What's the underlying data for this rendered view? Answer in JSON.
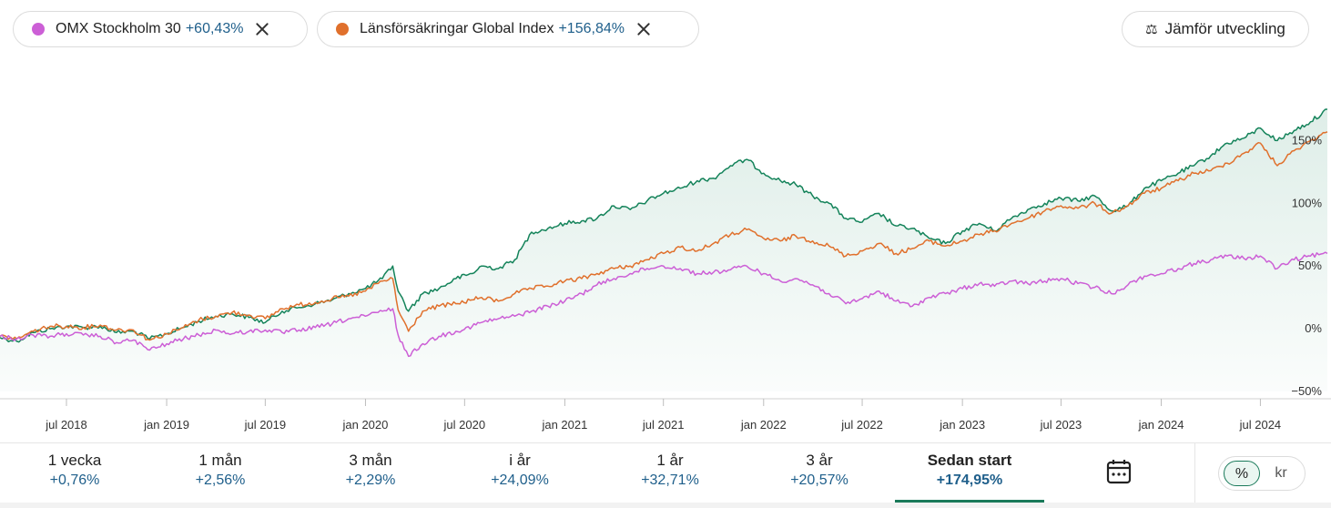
{
  "chips": [
    {
      "name": "OMX Stockholm 30",
      "change": "+60,43%",
      "color": "#cc5fd6"
    },
    {
      "name": "Länsförsäkringar Global Index",
      "change": "+156,84%",
      "color": "#e0702c"
    }
  ],
  "compare_button": {
    "label": "Jämför utveckling",
    "icon": "scale-icon"
  },
  "periods": [
    {
      "label": "1 vecka",
      "value": "+0,76%"
    },
    {
      "label": "1 mån",
      "value": "+2,56%"
    },
    {
      "label": "3 mån",
      "value": "+2,29%"
    },
    {
      "label": "i år",
      "value": "+24,09%"
    },
    {
      "label": "1 år",
      "value": "+32,71%"
    },
    {
      "label": "3 år",
      "value": "+20,57%"
    },
    {
      "label": "Sedan start",
      "value": "+174,95%",
      "active": true
    }
  ],
  "unit_toggle": {
    "percent": "%",
    "currency": "kr",
    "selected": "percent"
  },
  "chart_data": {
    "type": "line",
    "x_range": [
      "2018-03-01",
      "2024-11-01"
    ],
    "ylim": [
      -50,
      175
    ],
    "y_ticks": [
      {
        "value": -50,
        "label": "−50%"
      },
      {
        "value": 0,
        "label": "0%"
      },
      {
        "value": 50,
        "label": "50%"
      },
      {
        "value": 100,
        "label": "100%"
      },
      {
        "value": 150,
        "label": "150%"
      }
    ],
    "x_ticks": [
      {
        "date": "2018-07-01",
        "label": "jul 2018"
      },
      {
        "date": "2019-01-01",
        "label": "jan 2019"
      },
      {
        "date": "2019-07-01",
        "label": "jul 2019"
      },
      {
        "date": "2020-01-01",
        "label": "jan 2020"
      },
      {
        "date": "2020-07-01",
        "label": "jul 2020"
      },
      {
        "date": "2021-01-01",
        "label": "jan 2021"
      },
      {
        "date": "2021-07-01",
        "label": "jul 2021"
      },
      {
        "date": "2022-01-01",
        "label": "jan 2022"
      },
      {
        "date": "2022-07-01",
        "label": "jul 2022"
      },
      {
        "date": "2023-01-01",
        "label": "jan 2023"
      },
      {
        "date": "2023-07-01",
        "label": "jul 2023"
      },
      {
        "date": "2024-01-01",
        "label": "jan 2024"
      },
      {
        "date": "2024-07-01",
        "label": "jul 2024"
      }
    ],
    "series": [
      {
        "color": "#14835a",
        "fill": true,
        "points": [
          [
            "2018-03-01",
            -7
          ],
          [
            "2018-04-01",
            -10
          ],
          [
            "2018-05-01",
            -3
          ],
          [
            "2018-06-01",
            0
          ],
          [
            "2018-07-01",
            2
          ],
          [
            "2018-08-01",
            1
          ],
          [
            "2018-09-01",
            2
          ],
          [
            "2018-10-01",
            -3
          ],
          [
            "2018-11-01",
            -2
          ],
          [
            "2018-12-01",
            -8
          ],
          [
            "2019-01-01",
            -4
          ],
          [
            "2019-02-01",
            1
          ],
          [
            "2019-03-01",
            6
          ],
          [
            "2019-04-01",
            10
          ],
          [
            "2019-05-01",
            12
          ],
          [
            "2019-06-01",
            9
          ],
          [
            "2019-07-01",
            5
          ],
          [
            "2019-08-01",
            14
          ],
          [
            "2019-09-01",
            17
          ],
          [
            "2019-10-01",
            20
          ],
          [
            "2019-11-01",
            23
          ],
          [
            "2019-12-01",
            28
          ],
          [
            "2020-01-01",
            32
          ],
          [
            "2020-02-01",
            40
          ],
          [
            "2020-02-20",
            50
          ],
          [
            "2020-03-01",
            30
          ],
          [
            "2020-03-20",
            14
          ],
          [
            "2020-04-15",
            28
          ],
          [
            "2020-05-15",
            32
          ],
          [
            "2020-06-15",
            40
          ],
          [
            "2020-07-15",
            44
          ],
          [
            "2020-08-01",
            50
          ],
          [
            "2020-09-01",
            48
          ],
          [
            "2020-10-01",
            55
          ],
          [
            "2020-11-01",
            77
          ],
          [
            "2020-12-01",
            80
          ],
          [
            "2021-01-01",
            84
          ],
          [
            "2021-02-01",
            86
          ],
          [
            "2021-03-01",
            88
          ],
          [
            "2021-04-01",
            98
          ],
          [
            "2021-05-01",
            95
          ],
          [
            "2021-06-01",
            102
          ],
          [
            "2021-07-01",
            108
          ],
          [
            "2021-08-01",
            112
          ],
          [
            "2021-09-01",
            118
          ],
          [
            "2021-10-01",
            120
          ],
          [
            "2021-11-01",
            130
          ],
          [
            "2021-12-01",
            135
          ],
          [
            "2022-01-01",
            124
          ],
          [
            "2022-02-01",
            118
          ],
          [
            "2022-03-01",
            115
          ],
          [
            "2022-04-01",
            106
          ],
          [
            "2022-05-01",
            100
          ],
          [
            "2022-06-01",
            88
          ],
          [
            "2022-07-01",
            85
          ],
          [
            "2022-08-01",
            92
          ],
          [
            "2022-09-01",
            82
          ],
          [
            "2022-10-01",
            80
          ],
          [
            "2022-11-01",
            72
          ],
          [
            "2022-12-01",
            68
          ],
          [
            "2023-01-01",
            78
          ],
          [
            "2023-02-01",
            84
          ],
          [
            "2023-03-01",
            78
          ],
          [
            "2023-04-01",
            88
          ],
          [
            "2023-05-01",
            95
          ],
          [
            "2023-06-01",
            100
          ],
          [
            "2023-07-01",
            104
          ],
          [
            "2023-08-01",
            102
          ],
          [
            "2023-09-01",
            106
          ],
          [
            "2023-10-01",
            94
          ],
          [
            "2023-11-01",
            98
          ],
          [
            "2023-12-01",
            112
          ],
          [
            "2024-01-01",
            118
          ],
          [
            "2024-02-01",
            124
          ],
          [
            "2024-03-01",
            130
          ],
          [
            "2024-04-01",
            138
          ],
          [
            "2024-05-01",
            148
          ],
          [
            "2024-06-01",
            152
          ],
          [
            "2024-07-01",
            160
          ],
          [
            "2024-08-01",
            150
          ],
          [
            "2024-09-01",
            158
          ],
          [
            "2024-10-01",
            165
          ],
          [
            "2024-11-01",
            175
          ]
        ]
      },
      {
        "name": "Länsförsäkringar Global Index",
        "color": "#e0702c",
        "fill": false,
        "points": [
          [
            "2018-03-01",
            -6
          ],
          [
            "2018-04-01",
            -8
          ],
          [
            "2018-05-01",
            -2
          ],
          [
            "2018-06-01",
            2
          ],
          [
            "2018-07-01",
            2
          ],
          [
            "2018-08-01",
            1
          ],
          [
            "2018-09-01",
            3
          ],
          [
            "2018-10-01",
            -1
          ],
          [
            "2018-11-01",
            -1
          ],
          [
            "2018-12-01",
            -9
          ],
          [
            "2019-01-01",
            -4
          ],
          [
            "2019-02-01",
            1
          ],
          [
            "2019-03-01",
            7
          ],
          [
            "2019-04-01",
            10
          ],
          [
            "2019-05-01",
            13
          ],
          [
            "2019-06-01",
            11
          ],
          [
            "2019-07-01",
            8
          ],
          [
            "2019-08-01",
            16
          ],
          [
            "2019-09-01",
            19
          ],
          [
            "2019-10-01",
            21
          ],
          [
            "2019-11-01",
            24
          ],
          [
            "2019-12-01",
            26
          ],
          [
            "2020-01-01",
            30
          ],
          [
            "2020-02-01",
            38
          ],
          [
            "2020-02-20",
            40
          ],
          [
            "2020-03-01",
            15
          ],
          [
            "2020-03-20",
            -2
          ],
          [
            "2020-04-15",
            14
          ],
          [
            "2020-05-15",
            18
          ],
          [
            "2020-06-15",
            20
          ],
          [
            "2020-07-15",
            23
          ],
          [
            "2020-08-01",
            25
          ],
          [
            "2020-09-01",
            22
          ],
          [
            "2020-10-01",
            28
          ],
          [
            "2020-11-01",
            32
          ],
          [
            "2020-12-01",
            34
          ],
          [
            "2021-01-01",
            38
          ],
          [
            "2021-02-01",
            40
          ],
          [
            "2021-03-01",
            44
          ],
          [
            "2021-04-01",
            48
          ],
          [
            "2021-05-01",
            50
          ],
          [
            "2021-06-01",
            55
          ],
          [
            "2021-07-01",
            60
          ],
          [
            "2021-08-01",
            65
          ],
          [
            "2021-09-01",
            62
          ],
          [
            "2021-10-01",
            68
          ],
          [
            "2021-11-01",
            75
          ],
          [
            "2021-12-01",
            79
          ],
          [
            "2022-01-01",
            72
          ],
          [
            "2022-02-01",
            70
          ],
          [
            "2022-03-01",
            74
          ],
          [
            "2022-04-01",
            70
          ],
          [
            "2022-05-01",
            66
          ],
          [
            "2022-06-01",
            58
          ],
          [
            "2022-07-01",
            62
          ],
          [
            "2022-08-01",
            68
          ],
          [
            "2022-09-01",
            60
          ],
          [
            "2022-10-01",
            64
          ],
          [
            "2022-11-01",
            70
          ],
          [
            "2022-12-01",
            66
          ],
          [
            "2023-01-01",
            70
          ],
          [
            "2023-02-01",
            75
          ],
          [
            "2023-03-01",
            78
          ],
          [
            "2023-04-01",
            84
          ],
          [
            "2023-05-01",
            88
          ],
          [
            "2023-06-01",
            94
          ],
          [
            "2023-07-01",
            98
          ],
          [
            "2023-08-01",
            96
          ],
          [
            "2023-09-01",
            100
          ],
          [
            "2023-10-01",
            92
          ],
          [
            "2023-11-01",
            98
          ],
          [
            "2023-12-01",
            108
          ],
          [
            "2024-01-01",
            112
          ],
          [
            "2024-02-01",
            118
          ],
          [
            "2024-03-01",
            124
          ],
          [
            "2024-04-01",
            126
          ],
          [
            "2024-05-01",
            132
          ],
          [
            "2024-06-01",
            140
          ],
          [
            "2024-07-01",
            148
          ],
          [
            "2024-08-01",
            130
          ],
          [
            "2024-09-01",
            142
          ],
          [
            "2024-10-01",
            150
          ],
          [
            "2024-11-01",
            157
          ]
        ]
      },
      {
        "name": "OMX Stockholm 30",
        "color": "#cc5fd6",
        "fill": false,
        "points": [
          [
            "2018-03-01",
            -6
          ],
          [
            "2018-04-01",
            -8
          ],
          [
            "2018-05-01",
            -5
          ],
          [
            "2018-06-01",
            -6
          ],
          [
            "2018-07-01",
            -4
          ],
          [
            "2018-08-01",
            -5
          ],
          [
            "2018-09-01",
            -6
          ],
          [
            "2018-10-01",
            -11
          ],
          [
            "2018-11-01",
            -9
          ],
          [
            "2018-12-01",
            -17
          ],
          [
            "2019-01-01",
            -12
          ],
          [
            "2019-02-01",
            -8
          ],
          [
            "2019-03-01",
            -5
          ],
          [
            "2019-04-01",
            -1
          ],
          [
            "2019-05-01",
            -4
          ],
          [
            "2019-06-01",
            -2
          ],
          [
            "2019-07-01",
            -1
          ],
          [
            "2019-08-01",
            -3
          ],
          [
            "2019-09-01",
            -1
          ],
          [
            "2019-10-01",
            1
          ],
          [
            "2019-11-01",
            4
          ],
          [
            "2019-12-01",
            8
          ],
          [
            "2020-01-01",
            10
          ],
          [
            "2020-02-01",
            14
          ],
          [
            "2020-02-20",
            16
          ],
          [
            "2020-03-01",
            -5
          ],
          [
            "2020-03-20",
            -22
          ],
          [
            "2020-04-15",
            -12
          ],
          [
            "2020-05-15",
            -6
          ],
          [
            "2020-06-15",
            -2
          ],
          [
            "2020-07-15",
            2
          ],
          [
            "2020-08-01",
            5
          ],
          [
            "2020-09-01",
            8
          ],
          [
            "2020-10-01",
            10
          ],
          [
            "2020-11-01",
            14
          ],
          [
            "2020-12-01",
            18
          ],
          [
            "2021-01-01",
            22
          ],
          [
            "2021-02-01",
            28
          ],
          [
            "2021-03-01",
            35
          ],
          [
            "2021-04-01",
            40
          ],
          [
            "2021-05-01",
            44
          ],
          [
            "2021-06-01",
            48
          ],
          [
            "2021-07-01",
            50
          ],
          [
            "2021-08-01",
            48
          ],
          [
            "2021-09-01",
            44
          ],
          [
            "2021-10-01",
            45
          ],
          [
            "2021-11-01",
            47
          ],
          [
            "2021-12-01",
            50
          ],
          [
            "2022-01-01",
            44
          ],
          [
            "2022-02-01",
            38
          ],
          [
            "2022-03-01",
            40
          ],
          [
            "2022-04-01",
            35
          ],
          [
            "2022-05-01",
            28
          ],
          [
            "2022-06-01",
            20
          ],
          [
            "2022-07-01",
            24
          ],
          [
            "2022-08-01",
            30
          ],
          [
            "2022-09-01",
            22
          ],
          [
            "2022-10-01",
            18
          ],
          [
            "2022-11-01",
            25
          ],
          [
            "2022-12-01",
            28
          ],
          [
            "2023-01-01",
            32
          ],
          [
            "2023-02-01",
            36
          ],
          [
            "2023-03-01",
            34
          ],
          [
            "2023-04-01",
            38
          ],
          [
            "2023-05-01",
            36
          ],
          [
            "2023-06-01",
            38
          ],
          [
            "2023-07-01",
            40
          ],
          [
            "2023-08-01",
            36
          ],
          [
            "2023-09-01",
            33
          ],
          [
            "2023-10-01",
            28
          ],
          [
            "2023-11-01",
            35
          ],
          [
            "2023-12-01",
            42
          ],
          [
            "2024-01-01",
            44
          ],
          [
            "2024-02-01",
            48
          ],
          [
            "2024-03-01",
            52
          ],
          [
            "2024-04-01",
            55
          ],
          [
            "2024-05-01",
            58
          ],
          [
            "2024-06-01",
            56
          ],
          [
            "2024-07-01",
            58
          ],
          [
            "2024-08-01",
            48
          ],
          [
            "2024-09-01",
            55
          ],
          [
            "2024-10-01",
            58
          ],
          [
            "2024-11-01",
            60
          ]
        ]
      }
    ],
    "grid": false,
    "legend": "top-left"
  }
}
